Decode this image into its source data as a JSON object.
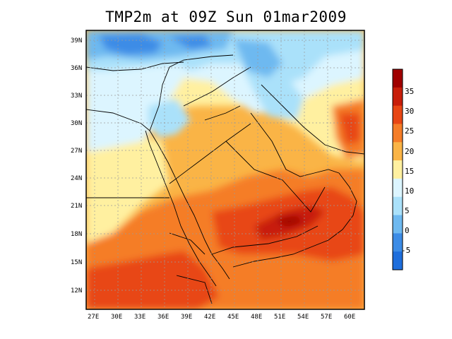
{
  "title": "TMP2m at 09Z Sun 01mar2009",
  "lat_labels": [
    "39N",
    "36N",
    "33N",
    "30N",
    "27N",
    "24N",
    "21N",
    "18N",
    "15N",
    "12N"
  ],
  "lon_labels": [
    "27E",
    "30E",
    "33E",
    "36E",
    "39E",
    "42E",
    "45E",
    "48E",
    "51E",
    "54E",
    "57E",
    "60E"
  ],
  "colorbar": {
    "labels": [
      "35",
      "30",
      "25",
      "20",
      "15",
      "10",
      "5",
      "0",
      "-5"
    ],
    "colors": [
      "#a00000",
      "#c81e0a",
      "#e84614",
      "#f57d28",
      "#fab446",
      "#fff0a0",
      "#dcf5ff",
      "#aae1fa",
      "#6eb9f0",
      "#3c8ce6",
      "#1e6edc"
    ]
  },
  "map_colors": {
    "background_warm": "#fab446",
    "land_border": "#000000",
    "grid": "#9a9a9a"
  }
}
